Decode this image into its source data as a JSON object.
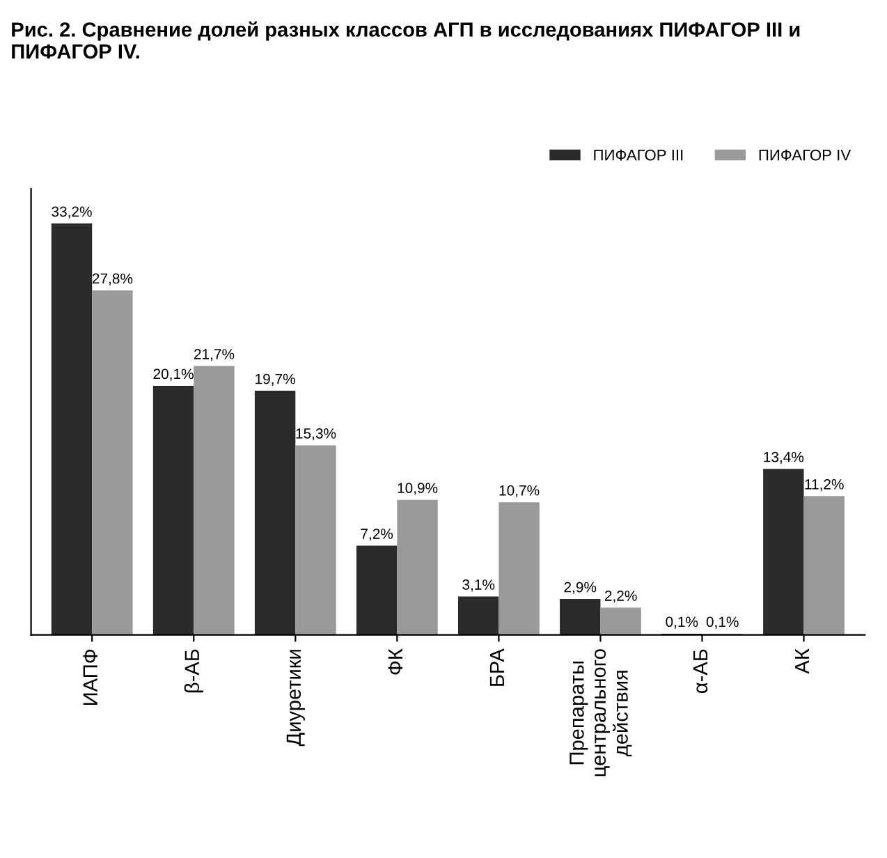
{
  "chart_data": {
    "type": "bar",
    "title": "Рис. 2. Сравнение долей разных классов АГП в исследованиях ПИФАГОР III и ПИФАГОР IV.",
    "categories": [
      "ИАПФ",
      "β-АБ",
      "Диуретики",
      "ФК",
      "БРА",
      "Препараты центрального действия",
      "α-АБ",
      "АК"
    ],
    "series": [
      {
        "name": "ПИФАГОР III",
        "color": "#2b2b2b",
        "values": [
          33.2,
          20.1,
          19.7,
          7.2,
          3.1,
          2.9,
          0.1,
          13.4
        ],
        "value_labels": [
          "33,2%",
          "20,1%",
          "19,7%",
          "7,2%",
          "3,1%",
          "2,9%",
          "0,1%",
          "13,4%"
        ]
      },
      {
        "name": "ПИФАГОР IV",
        "color": "#9a9a9a",
        "values": [
          27.8,
          21.7,
          15.3,
          10.9,
          10.7,
          2.2,
          0.1,
          11.2
        ],
        "value_labels": [
          "27,8%",
          "21,7%",
          "15,3%",
          "10,9%",
          "10,7%",
          "2,2%",
          "0,1%",
          "11,2%"
        ]
      }
    ],
    "ylim": [
      0,
      36
    ],
    "tick_labels": "x",
    "legend": "top right"
  }
}
